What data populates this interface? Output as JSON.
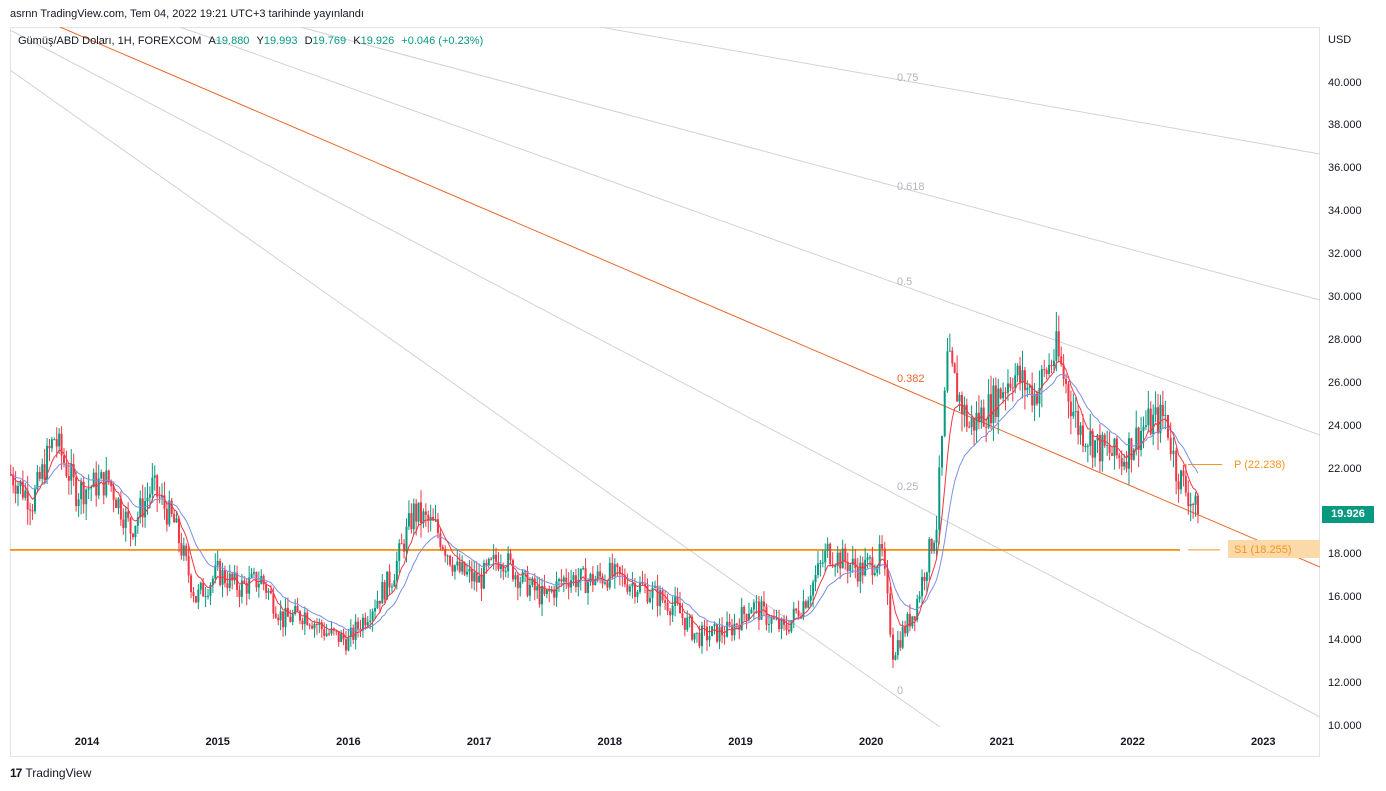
{
  "header": {
    "published": "asrnn TradingView.com, Tem 04, 2022 19:21 UTC+3 tarihinde yayınlandı"
  },
  "legend": {
    "symbol": "Gümüş/ABD Doları, 1H, FOREXCOM",
    "open_label": "A",
    "open": "19.880",
    "high_label": "Y",
    "high": "19.993",
    "low_label": "D",
    "low": "19.769",
    "close_label": "K",
    "close": "19.926",
    "change": "+0.046 (+0.23%)"
  },
  "price_axis": {
    "unit": "USD",
    "ticks": [
      "40.000",
      "38.000",
      "36.000",
      "34.000",
      "32.000",
      "30.000",
      "28.000",
      "26.000",
      "24.000",
      "22.000",
      "20.000",
      "18.000",
      "16.000",
      "14.000",
      "12.000",
      "10.000"
    ],
    "last_price": "19.926"
  },
  "time_axis": {
    "ticks": [
      "2014",
      "2015",
      "2016",
      "2017",
      "2018",
      "2019",
      "2020",
      "2021",
      "2022",
      "2023"
    ]
  },
  "fib_labels": [
    "0.75",
    "0.618",
    "0.5",
    "0.382",
    "0.25",
    "0"
  ],
  "levels": {
    "pivot": "P (22.238)",
    "support": "S1 (18.255)"
  },
  "footer": {
    "brand": "TradingView",
    "logo": "17"
  },
  "colors": {
    "up": "#089981",
    "down": "#f23645",
    "ema_fast": "#f23645",
    "ema_slow": "#7b8fe8",
    "fib_line": "#cfd2d8",
    "fib_382": "#e8672a",
    "support": "#f7941d"
  },
  "chart_data": {
    "type": "candlestick",
    "ylim": [
      10,
      41
    ],
    "x_range": [
      "2013-06",
      "2023-06"
    ],
    "anchors": [
      [
        "2013-06",
        21.8
      ],
      [
        "2013-08",
        20.5
      ],
      [
        "2013-10",
        23.5
      ],
      [
        "2013-12",
        21.0
      ],
      [
        "2014-03",
        21.5
      ],
      [
        "2014-05",
        19.2
      ],
      [
        "2014-07",
        21.2
      ],
      [
        "2014-09",
        19.5
      ],
      [
        "2014-11",
        16.0
      ],
      [
        "2015-01",
        17.2
      ],
      [
        "2015-03",
        16.5
      ],
      [
        "2015-05",
        16.9
      ],
      [
        "2015-07",
        15.0
      ],
      [
        "2015-09",
        15.3
      ],
      [
        "2015-11",
        14.4
      ],
      [
        "2016-01",
        14.0
      ],
      [
        "2016-03",
        15.5
      ],
      [
        "2016-05",
        17.0
      ],
      [
        "2016-07",
        20.0
      ],
      [
        "2016-09",
        19.3
      ],
      [
        "2016-11",
        17.3
      ],
      [
        "2017-01",
        16.8
      ],
      [
        "2017-03",
        18.0
      ],
      [
        "2017-05",
        16.8
      ],
      [
        "2017-07",
        16.0
      ],
      [
        "2017-09",
        17.0
      ],
      [
        "2017-11",
        16.8
      ],
      [
        "2018-01",
        17.1
      ],
      [
        "2018-04",
        16.5
      ],
      [
        "2018-07",
        15.6
      ],
      [
        "2018-09",
        14.2
      ],
      [
        "2018-12",
        14.5
      ],
      [
        "2019-02",
        15.7
      ],
      [
        "2019-05",
        14.5
      ],
      [
        "2019-07",
        16.0
      ],
      [
        "2019-09",
        18.2
      ],
      [
        "2019-12",
        17.3
      ],
      [
        "2020-02",
        18.0
      ],
      [
        "2020-03",
        13.5
      ],
      [
        "2020-05",
        15.5
      ],
      [
        "2020-07",
        19.5
      ],
      [
        "2020-08",
        27.0
      ],
      [
        "2020-10",
        24.0
      ],
      [
        "2020-12",
        25.0
      ],
      [
        "2021-02",
        26.5
      ],
      [
        "2021-04",
        25.5
      ],
      [
        "2021-06",
        27.5
      ],
      [
        "2021-08",
        24.0
      ],
      [
        "2021-10",
        23.0
      ],
      [
        "2021-12",
        22.5
      ],
      [
        "2022-02",
        24.0
      ],
      [
        "2022-04",
        24.5
      ],
      [
        "2022-05",
        22.0
      ],
      [
        "2022-07",
        19.93
      ]
    ],
    "last_close": 19.926,
    "support_level": 18.255,
    "pivot_level": 22.238
  }
}
